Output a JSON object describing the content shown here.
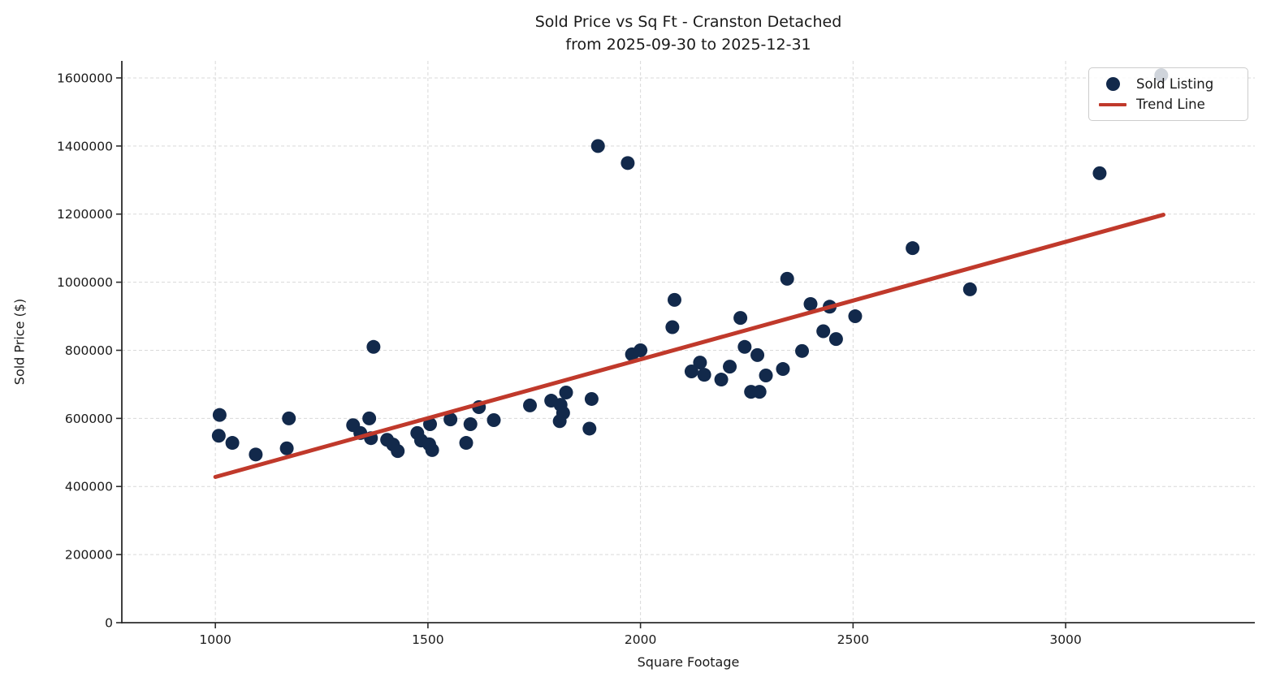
{
  "page": {
    "background": "#ffffff"
  },
  "chart_data": {
    "type": "scatter",
    "title": "Sold Price vs Sq Ft - Cranston Detached",
    "subtitle": "from 2025-09-30 to 2025-12-31",
    "xlabel": "Square Footage",
    "ylabel": "Sold Price ($)",
    "xlim": [
      780,
      3445
    ],
    "ylim": [
      0,
      1650000
    ],
    "x_ticks": [
      1000,
      1500,
      2000,
      2500,
      3000
    ],
    "y_ticks": [
      0,
      200000,
      400000,
      600000,
      800000,
      1000000,
      1200000,
      1400000,
      1600000
    ],
    "grid": true,
    "colors": {
      "grid": "#D9D9D9",
      "spine": "#2B2B2B",
      "text": "#1A1A1A",
      "background": "#FFFFFF"
    },
    "legend": {
      "position": "upper right",
      "entries": [
        {
          "label": "Sold Listing",
          "marker": "dot",
          "color": "#12294B"
        },
        {
          "label": "Trend Line",
          "marker": "line",
          "color": "#C0392B"
        }
      ]
    },
    "series": [
      {
        "name": "Sold Listing",
        "type": "scatter",
        "color": "#12294B",
        "marker_size": 8.5,
        "points": [
          [
            1010,
            610000
          ],
          [
            1008,
            549000
          ],
          [
            1040,
            528000
          ],
          [
            1095,
            494000
          ],
          [
            1173,
            600000
          ],
          [
            1168,
            512000
          ],
          [
            1324,
            580000
          ],
          [
            1341,
            557000
          ],
          [
            1362,
            600000
          ],
          [
            1366,
            542000
          ],
          [
            1372,
            810000
          ],
          [
            1404,
            537000
          ],
          [
            1418,
            523000
          ],
          [
            1429,
            504000
          ],
          [
            1475,
            557000
          ],
          [
            1484,
            535000
          ],
          [
            1505,
            583000
          ],
          [
            1503,
            524000
          ],
          [
            1510,
            507000
          ],
          [
            1553,
            597000
          ],
          [
            1590,
            528000
          ],
          [
            1600,
            583000
          ],
          [
            1620,
            633000
          ],
          [
            1655,
            595000
          ],
          [
            1740,
            638000
          ],
          [
            1790,
            652000
          ],
          [
            1825,
            676000
          ],
          [
            1812,
            640000
          ],
          [
            1818,
            616000
          ],
          [
            1810,
            592000
          ],
          [
            1885,
            657000
          ],
          [
            1880,
            570000
          ],
          [
            1900,
            1400000
          ],
          [
            1970,
            1350000
          ],
          [
            1980,
            788000
          ],
          [
            2000,
            800000
          ],
          [
            2075,
            868000
          ],
          [
            2080,
            948000
          ],
          [
            2120,
            738000
          ],
          [
            2140,
            764000
          ],
          [
            2150,
            728000
          ],
          [
            2190,
            714000
          ],
          [
            2210,
            752000
          ],
          [
            2235,
            895000
          ],
          [
            2245,
            810000
          ],
          [
            2260,
            678000
          ],
          [
            2275,
            786000
          ],
          [
            2280,
            678000
          ],
          [
            2295,
            726000
          ],
          [
            2335,
            745000
          ],
          [
            2345,
            1010000
          ],
          [
            2380,
            798000
          ],
          [
            2400,
            936000
          ],
          [
            2430,
            856000
          ],
          [
            2445,
            928000
          ],
          [
            2460,
            833000
          ],
          [
            2505,
            900000
          ],
          [
            2640,
            1100000
          ],
          [
            2775,
            979000
          ],
          [
            3080,
            1320000
          ],
          [
            3225,
            1608000
          ]
        ]
      },
      {
        "name": "Trend Line",
        "type": "line",
        "color": "#C0392B",
        "width": 5,
        "points": [
          [
            1000,
            428000
          ],
          [
            3230,
            1198000
          ]
        ]
      }
    ]
  }
}
